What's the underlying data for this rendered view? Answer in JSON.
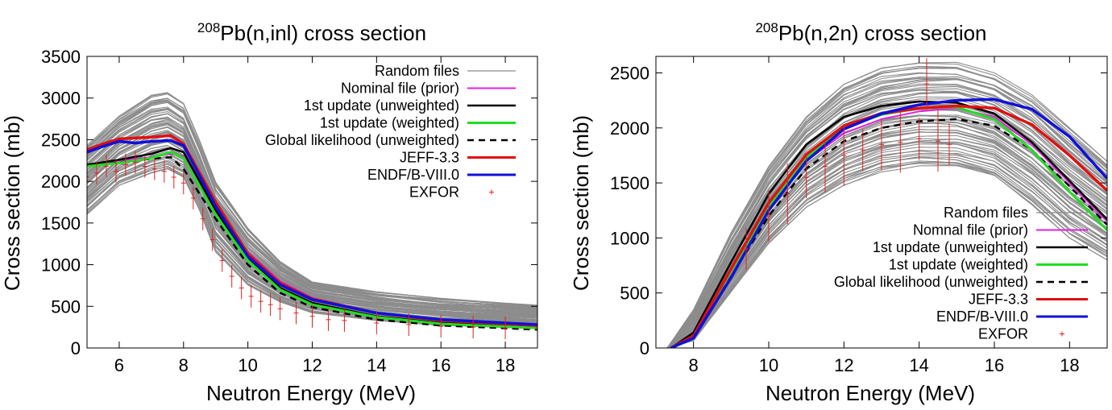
{
  "colors": {
    "random": "#8c8c8c",
    "nominal": "#e020e0",
    "update_unweighted": "#000000",
    "update_weighted": "#22dd22",
    "global": "#000000",
    "jeff": "#e01010",
    "endf": "#1010d8",
    "exfor": "#e02020"
  },
  "chart_data": [
    {
      "type": "line",
      "title": {
        "sup": "208",
        "main": "Pb(n,inl) cross section"
      },
      "xlabel": "Neutron Energy (MeV)",
      "ylabel": "Cross section (mb)",
      "xlim": [
        5,
        19
      ],
      "ylim": [
        0,
        3500
      ],
      "xticks": [
        "6",
        "8",
        "10",
        "12",
        "14",
        "16",
        "18"
      ],
      "yticks": [
        "0",
        "500",
        "1000",
        "1500",
        "2000",
        "2500",
        "3000",
        "3500"
      ],
      "legend_position": "top-right",
      "legend": [
        "Random files",
        "Nominal file (prior)",
        "1st update (unweighted)",
        "1st update (weighted)",
        "Global likelihood (unweighted)",
        "JEFF-3.3",
        "ENDF/B-VIII.0",
        "EXFOR"
      ],
      "series": [
        {
          "name": "Random files",
          "band_lower": [
            [
              5,
              1600
            ],
            [
              6,
              1950
            ],
            [
              7,
              2100
            ],
            [
              7.5,
              2150
            ],
            [
              8,
              2050
            ],
            [
              8.5,
              1650
            ],
            [
              9,
              1150
            ],
            [
              10,
              750
            ],
            [
              11,
              550
            ],
            [
              12,
              420
            ],
            [
              14,
              330
            ],
            [
              16,
              270
            ],
            [
              19,
              230
            ]
          ],
          "band_upper": [
            [
              5,
              2450
            ],
            [
              6,
              2800
            ],
            [
              7,
              3050
            ],
            [
              7.5,
              3080
            ],
            [
              8,
              2950
            ],
            [
              8.5,
              2500
            ],
            [
              9,
              2000
            ],
            [
              10,
              1450
            ],
            [
              11,
              1050
            ],
            [
              12,
              800
            ],
            [
              14,
              680
            ],
            [
              16,
              600
            ],
            [
              19,
              520
            ]
          ]
        },
        {
          "name": "Nominal file (prior)",
          "x": [
            5,
            6,
            7,
            7.6,
            8,
            9,
            10,
            11,
            12,
            14,
            16,
            19
          ],
          "y": [
            2200,
            2250,
            2290,
            2330,
            2300,
            1700,
            1150,
            800,
            600,
            420,
            330,
            280
          ]
        },
        {
          "name": "1st update (unweighted)",
          "x": [
            5,
            6,
            7,
            7.6,
            8,
            9,
            10,
            11,
            12,
            14,
            16,
            19
          ],
          "y": [
            2200,
            2260,
            2330,
            2400,
            2350,
            1650,
            1080,
            720,
            540,
            380,
            300,
            250
          ]
        },
        {
          "name": "1st update (weighted)",
          "x": [
            5,
            6,
            7,
            7.6,
            8,
            9,
            10,
            11,
            12,
            14,
            16,
            19
          ],
          "y": [
            2180,
            2220,
            2280,
            2350,
            2280,
            1600,
            1050,
            700,
            520,
            370,
            290,
            240
          ]
        },
        {
          "name": "Global likelihood (unweighted)",
          "x": [
            5,
            6,
            7,
            7.6,
            8,
            9,
            10,
            11,
            12,
            14,
            16,
            19
          ],
          "y": [
            2200,
            2230,
            2270,
            2290,
            2150,
            1550,
            1000,
            660,
            490,
            340,
            270,
            220
          ]
        },
        {
          "name": "JEFF-3.3",
          "x": [
            5,
            5.5,
            6,
            7,
            7.6,
            8,
            9,
            10,
            11,
            12,
            14,
            16,
            19
          ],
          "y": [
            2380,
            2450,
            2510,
            2530,
            2550,
            2450,
            1750,
            1130,
            780,
            590,
            420,
            330,
            270
          ]
        },
        {
          "name": "ENDF/B-VIII.0",
          "x": [
            5,
            5.5,
            6,
            6.5,
            7,
            7.6,
            8,
            9,
            10,
            11,
            12,
            14,
            16,
            19
          ],
          "y": [
            2350,
            2420,
            2480,
            2460,
            2480,
            2490,
            2430,
            1700,
            1100,
            760,
            580,
            420,
            340,
            280
          ]
        },
        {
          "name": "EXFOR",
          "x": [
            5,
            5.3,
            5.6,
            5.9,
            6.2,
            6.5,
            6.8,
            7.1,
            7.4,
            7.7,
            8,
            8.3,
            8.6,
            8.9,
            9.2,
            9.5,
            9.8,
            10.1,
            10.4,
            10.7,
            11,
            11.5,
            12,
            12.5,
            13,
            14,
            15,
            16,
            17,
            18,
            19
          ],
          "y": [
            2050,
            2100,
            2180,
            2120,
            2200,
            2230,
            2180,
            2150,
            2120,
            2050,
            1980,
            1800,
            1550,
            1300,
            1050,
            860,
            720,
            620,
            560,
            520,
            470,
            420,
            380,
            340,
            330,
            300,
            280,
            260,
            250,
            240,
            240
          ]
        }
      ]
    },
    {
      "type": "line",
      "title": {
        "sup": "208",
        "main": "Pb(n,2n) cross section"
      },
      "xlabel": "Neutron Energy (MeV)",
      "ylabel": "Cross section (mb)",
      "xlim": [
        7,
        19
      ],
      "ylim": [
        0,
        2650
      ],
      "xticks": [
        "8",
        "10",
        "12",
        "14",
        "16",
        "18"
      ],
      "yticks": [
        "0",
        "500",
        "1000",
        "1500",
        "2000",
        "2500"
      ],
      "legend_position": "bottom-right",
      "legend": [
        "Random files",
        "Nomnal file (prior)",
        "1st update (unweighted)",
        "1st update (weighted)",
        "Global likelihood (unweighted)",
        "JEFF-3.3",
        "ENDF/B-VIII.0",
        "EXFOR"
      ],
      "series": [
        {
          "name": "Random files",
          "band_lower": [
            [
              7.3,
              0
            ],
            [
              8,
              60
            ],
            [
              9,
              500
            ],
            [
              10,
              950
            ],
            [
              11,
              1280
            ],
            [
              12,
              1480
            ],
            [
              13,
              1600
            ],
            [
              14,
              1650
            ],
            [
              15,
              1640
            ],
            [
              16,
              1550
            ],
            [
              17,
              1300
            ],
            [
              18,
              1000
            ],
            [
              19,
              800
            ]
          ],
          "band_upper": [
            [
              7.3,
              0
            ],
            [
              8,
              350
            ],
            [
              9,
              1050
            ],
            [
              10,
              1650
            ],
            [
              11,
              2100
            ],
            [
              12,
              2400
            ],
            [
              13,
              2550
            ],
            [
              14,
              2600
            ],
            [
              15,
              2600
            ],
            [
              16,
              2500
            ],
            [
              17,
              2300
            ],
            [
              18,
              2000
            ],
            [
              19,
              1700
            ]
          ]
        },
        {
          "name": "Nomnal file (prior)",
          "x": [
            7.4,
            8,
            9,
            10,
            11,
            12,
            13,
            14,
            15,
            16,
            17,
            18,
            19
          ],
          "y": [
            0,
            120,
            700,
            1300,
            1700,
            1950,
            2080,
            2150,
            2180,
            2100,
            1850,
            1500,
            1150
          ]
        },
        {
          "name": "1st update (unweighted)",
          "x": [
            7.4,
            8,
            9,
            10,
            11,
            12,
            13,
            14,
            15,
            16,
            17,
            18,
            19
          ],
          "y": [
            0,
            140,
            780,
            1400,
            1850,
            2100,
            2200,
            2240,
            2230,
            2130,
            1870,
            1520,
            1170
          ]
        },
        {
          "name": "1st update (weighted)",
          "x": [
            7.4,
            8,
            9,
            10,
            11,
            12,
            13,
            14,
            15,
            16,
            17,
            18,
            19
          ],
          "y": [
            0,
            110,
            700,
            1280,
            1730,
            2000,
            2120,
            2180,
            2190,
            2080,
            1800,
            1420,
            1070
          ]
        },
        {
          "name": "Global likelihood (unweighted)",
          "x": [
            7.4,
            8,
            9,
            10,
            11,
            12,
            13,
            14,
            15,
            16,
            17,
            18,
            19
          ],
          "y": [
            0,
            100,
            650,
            1200,
            1630,
            1880,
            2000,
            2060,
            2080,
            2020,
            1800,
            1470,
            1120
          ]
        },
        {
          "name": "JEFF-3.3",
          "x": [
            7.4,
            8,
            9,
            10,
            11,
            12,
            13,
            14,
            15,
            16,
            17,
            18,
            19
          ],
          "y": [
            0,
            110,
            720,
            1320,
            1760,
            2020,
            2130,
            2180,
            2200,
            2180,
            2030,
            1750,
            1430
          ]
        },
        {
          "name": "ENDF/B-VIII.0",
          "x": [
            7.4,
            8,
            9,
            10,
            11,
            12,
            13,
            14,
            15,
            16,
            17,
            18,
            19
          ],
          "y": [
            0,
            90,
            640,
            1250,
            1700,
            1990,
            2130,
            2210,
            2250,
            2260,
            2170,
            1920,
            1540
          ]
        },
        {
          "name": "EXFOR",
          "x": [
            9.4,
            10,
            10.5,
            11,
            11.5,
            12,
            12.5,
            13,
            13.5,
            14,
            14.2,
            14.5,
            14.8
          ],
          "y": [
            900,
            1200,
            1400,
            1550,
            1650,
            1750,
            1800,
            1850,
            1870,
            1900,
            2400,
            1880,
            1850
          ]
        }
      ]
    }
  ]
}
